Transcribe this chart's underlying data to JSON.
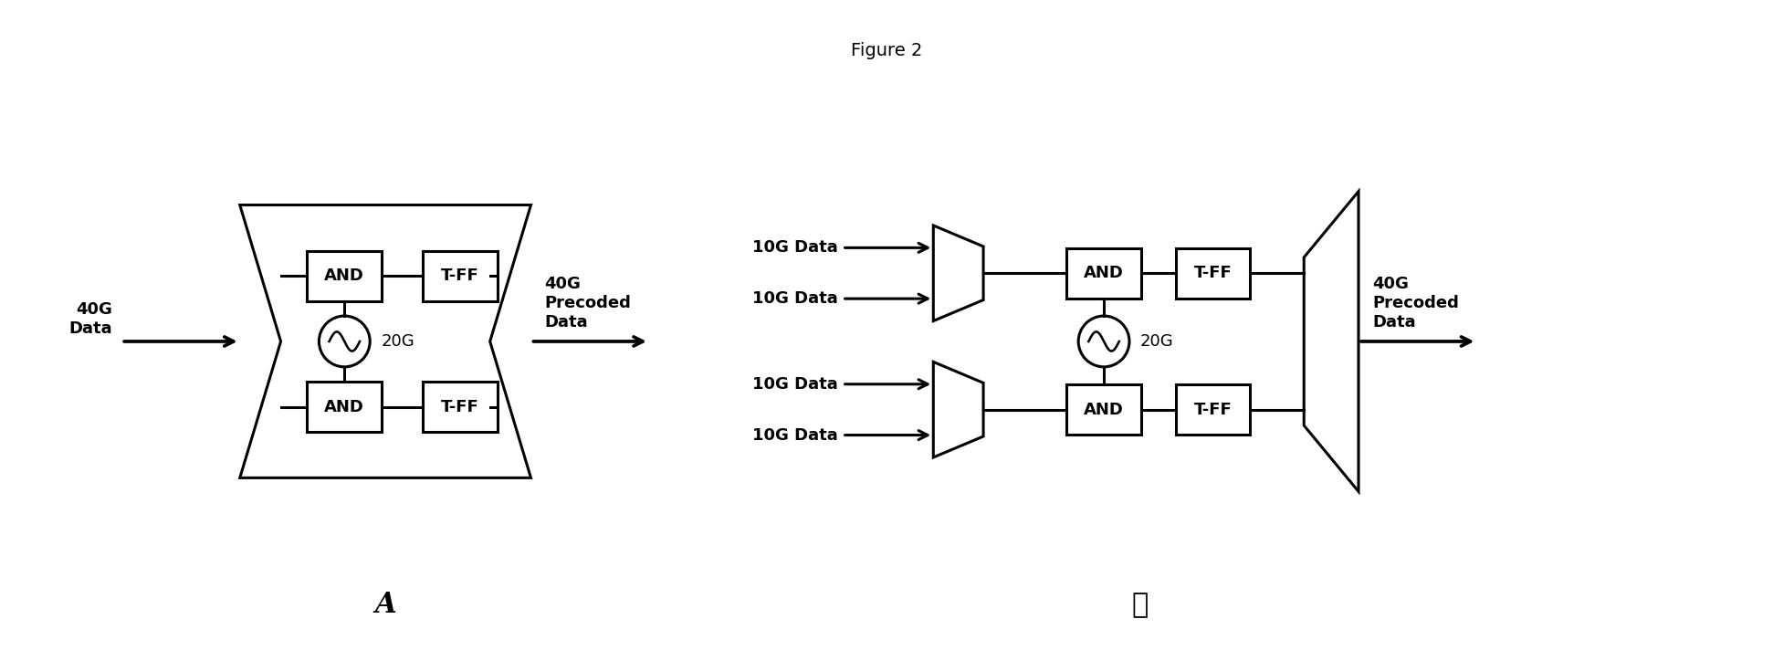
{
  "title": "Figure 2",
  "bg_color": "#ffffff",
  "figsize": [
    19.42,
    7.24
  ],
  "dpi": 100,
  "label_A": "A",
  "label_B": "ℬ",
  "diagram_A": {
    "input_label": "40G\nData",
    "output_label": "40G\nPrecoded\nData",
    "clock_label": "20G",
    "top_and_label": "AND",
    "top_tff_label": "T-FF",
    "bot_and_label": "AND",
    "bot_tff_label": "T-FF"
  },
  "diagram_B": {
    "input_top1": "10G Data",
    "input_top2": "10G Data",
    "input_bot1": "10G Data",
    "input_bot2": "10G Data",
    "output_label": "40G\nPrecoded\nData",
    "clock_label": "20G",
    "top_and_label": "AND",
    "top_tff_label": "T-FF",
    "bot_and_label": "AND",
    "bot_tff_label": "T-FF"
  }
}
